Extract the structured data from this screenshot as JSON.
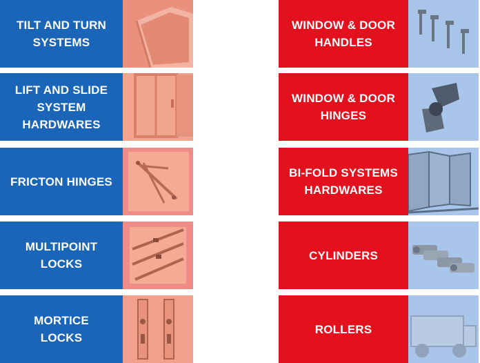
{
  "left_tiles": [
    {
      "label": "TILT AND TURN\nSYSTEMS"
    },
    {
      "label": "LIFT AND SLIDE\nSYSTEM\nHARDWARES"
    },
    {
      "label": "FRICTON HINGES"
    },
    {
      "label": "MULTIPOINT\nLOCKS"
    },
    {
      "label": "MORTICE\nLOCKS"
    }
  ],
  "right_tiles": [
    {
      "label": "WINDOW & DOOR\nHANDLES"
    },
    {
      "label": "WINDOW & DOOR\nHINGES"
    },
    {
      "label": "BI-FOLD SYSTEMS\nHARDWARES"
    },
    {
      "label": "CYLINDERS"
    },
    {
      "label": "ROLLERS"
    }
  ],
  "colors": {
    "left_accent": "#1a65b8",
    "right_accent": "#e3101d",
    "left_thumb": "#f0a08c",
    "right_thumb": "#9fbfe8"
  }
}
